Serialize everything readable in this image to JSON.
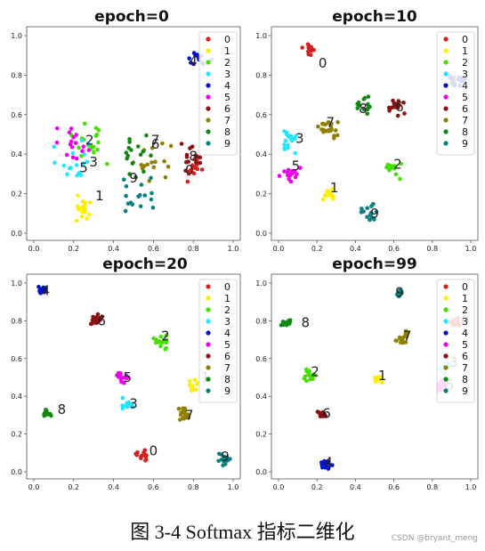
{
  "caption": "图 3-4 Softmax 指标二维化",
  "watermark": "CSDN @bryant_meng",
  "colors": [
    "#d62020",
    "#ffee00",
    "#44e000",
    "#22e6ff",
    "#0011cc",
    "#ee00ee",
    "#8b1010",
    "#8f8000",
    "#118811",
    "#0a8080"
  ],
  "chart_data": [
    {
      "type": "scatter",
      "title": "epoch=0",
      "xlim": [
        0,
        1
      ],
      "ylim": [
        0,
        1
      ],
      "xticks": [
        "0.0",
        "0.2",
        "0.4",
        "0.6",
        "0.8",
        "1.0"
      ],
      "yticks": [
        "0.0",
        "0.2",
        "0.4",
        "0.6",
        "0.8",
        "1.0"
      ],
      "legend": [
        "0",
        "1",
        "2",
        "3",
        "4",
        "5",
        "6",
        "7",
        "8",
        "9"
      ],
      "legend_position": "top-right",
      "clusters": [
        {
          "label": "0",
          "center": [
            0.8,
            0.32
          ],
          "spread": 0.06,
          "count": 16
        },
        {
          "label": "1",
          "center": [
            0.25,
            0.12
          ],
          "spread": 0.06,
          "count": 16
        },
        {
          "label": "2",
          "center": [
            0.28,
            0.45
          ],
          "spread": 0.09,
          "count": 18
        },
        {
          "label": "3",
          "center": [
            0.2,
            0.38
          ],
          "spread": 0.08,
          "count": 16
        },
        {
          "label": "4",
          "center": [
            0.82,
            0.88
          ],
          "spread": 0.05,
          "count": 12
        },
        {
          "label": "5",
          "center": [
            0.2,
            0.45
          ],
          "spread": 0.08,
          "count": 16
        },
        {
          "label": "6",
          "center": [
            0.8,
            0.35
          ],
          "spread": 0.08,
          "count": 14
        },
        {
          "label": "7",
          "center": [
            0.58,
            0.38
          ],
          "spread": 0.09,
          "count": 16
        },
        {
          "label": "8",
          "center": [
            0.52,
            0.42
          ],
          "spread": 0.09,
          "count": 16
        },
        {
          "label": "9",
          "center": [
            0.5,
            0.2
          ],
          "spread": 0.08,
          "count": 16
        }
      ],
      "annotations": [
        {
          "text": "0",
          "x": 0.78,
          "y": 0.32
        },
        {
          "text": "1",
          "x": 0.33,
          "y": 0.19
        },
        {
          "text": "2",
          "x": 0.28,
          "y": 0.47
        },
        {
          "text": "3",
          "x": 0.3,
          "y": 0.36
        },
        {
          "text": "4",
          "x": 0.8,
          "y": 0.87
        },
        {
          "text": "5",
          "x": 0.25,
          "y": 0.33
        },
        {
          "text": "6",
          "x": 0.61,
          "y": 0.45
        },
        {
          "text": "7",
          "x": 0.61,
          "y": 0.47
        },
        {
          "text": "8",
          "x": 0.8,
          "y": 0.39
        },
        {
          "text": "9",
          "x": 0.5,
          "y": 0.28
        }
      ]
    },
    {
      "type": "scatter",
      "title": "epoch=10",
      "xlim": [
        0,
        1
      ],
      "ylim": [
        0,
        1
      ],
      "xticks": [
        "0.0",
        "0.2",
        "0.4",
        "0.6",
        "0.8",
        "1.0"
      ],
      "yticks": [
        "0.0",
        "0.2",
        "0.4",
        "0.6",
        "0.8",
        "1.0"
      ],
      "legend": [
        "0",
        "1",
        "2",
        "3",
        "4",
        "5",
        "6",
        "7",
        "8",
        "9"
      ],
      "legend_position": "top-right",
      "clusters": [
        {
          "label": "0",
          "center": [
            0.16,
            0.93
          ],
          "spread": 0.03,
          "count": 16
        },
        {
          "label": "1",
          "center": [
            0.26,
            0.2
          ],
          "spread": 0.03,
          "count": 14
        },
        {
          "label": "2",
          "center": [
            0.6,
            0.33
          ],
          "spread": 0.04,
          "count": 14
        },
        {
          "label": "3",
          "center": [
            0.06,
            0.47
          ],
          "spread": 0.05,
          "count": 18
        },
        {
          "label": "4",
          "center": [
            0.92,
            0.77
          ],
          "spread": 0.04,
          "count": 16
        },
        {
          "label": "5",
          "center": [
            0.06,
            0.3
          ],
          "spread": 0.04,
          "count": 16
        },
        {
          "label": "6",
          "center": [
            0.62,
            0.64
          ],
          "spread": 0.04,
          "count": 16
        },
        {
          "label": "7",
          "center": [
            0.26,
            0.53
          ],
          "spread": 0.05,
          "count": 22
        },
        {
          "label": "8",
          "center": [
            0.45,
            0.65
          ],
          "spread": 0.04,
          "count": 14
        },
        {
          "label": "9",
          "center": [
            0.47,
            0.1
          ],
          "spread": 0.04,
          "count": 16
        }
      ],
      "annotations": [
        {
          "text": "0",
          "x": 0.23,
          "y": 0.86
        },
        {
          "text": "1",
          "x": 0.29,
          "y": 0.23
        },
        {
          "text": "2",
          "x": 0.62,
          "y": 0.35
        },
        {
          "text": "3",
          "x": 0.11,
          "y": 0.48
        },
        {
          "text": "4",
          "x": 0.91,
          "y": 0.77
        },
        {
          "text": "5",
          "x": 0.09,
          "y": 0.34
        },
        {
          "text": "6",
          "x": 0.63,
          "y": 0.64
        },
        {
          "text": "7",
          "x": 0.27,
          "y": 0.56
        },
        {
          "text": "8",
          "x": 0.44,
          "y": 0.63
        },
        {
          "text": "9",
          "x": 0.5,
          "y": 0.1
        }
      ]
    },
    {
      "type": "scatter",
      "title": "epoch=20",
      "xlim": [
        0,
        1
      ],
      "ylim": [
        0,
        1
      ],
      "xticks": [
        "0.0",
        "0.2",
        "0.4",
        "0.6",
        "0.8",
        "1.0"
      ],
      "yticks": [
        "0.0",
        "0.2",
        "0.4",
        "0.6",
        "0.8",
        "1.0"
      ],
      "legend": [
        "0",
        "1",
        "2",
        "3",
        "4",
        "5",
        "6",
        "7",
        "8",
        "9"
      ],
      "legend_position": "top-right",
      "clusters": [
        {
          "label": "0",
          "center": [
            0.55,
            0.08
          ],
          "spread": 0.03,
          "count": 14
        },
        {
          "label": "1",
          "center": [
            0.8,
            0.46
          ],
          "spread": 0.03,
          "count": 12
        },
        {
          "label": "2",
          "center": [
            0.64,
            0.69
          ],
          "spread": 0.03,
          "count": 16
        },
        {
          "label": "3",
          "center": [
            0.47,
            0.35
          ],
          "spread": 0.03,
          "count": 14
        },
        {
          "label": "4",
          "center": [
            0.04,
            0.96
          ],
          "spread": 0.02,
          "count": 14
        },
        {
          "label": "5",
          "center": [
            0.44,
            0.5
          ],
          "spread": 0.03,
          "count": 18
        },
        {
          "label": "6",
          "center": [
            0.31,
            0.8
          ],
          "spread": 0.03,
          "count": 16
        },
        {
          "label": "7",
          "center": [
            0.75,
            0.3
          ],
          "spread": 0.03,
          "count": 16
        },
        {
          "label": "8",
          "center": [
            0.06,
            0.31
          ],
          "spread": 0.02,
          "count": 14
        },
        {
          "label": "9",
          "center": [
            0.95,
            0.06
          ],
          "spread": 0.03,
          "count": 14
        }
      ],
      "annotations": [
        {
          "text": "0",
          "x": 0.6,
          "y": 0.11
        },
        {
          "text": "1",
          "x": 0.86,
          "y": 0.5
        },
        {
          "text": "2",
          "x": 0.66,
          "y": 0.72
        },
        {
          "text": "3",
          "x": 0.5,
          "y": 0.36
        },
        {
          "text": "4",
          "x": 0.06,
          "y": 0.96
        },
        {
          "text": "5",
          "x": 0.47,
          "y": 0.5
        },
        {
          "text": "6",
          "x": 0.34,
          "y": 0.8
        },
        {
          "text": "7",
          "x": 0.78,
          "y": 0.3
        },
        {
          "text": "8",
          "x": 0.14,
          "y": 0.33
        },
        {
          "text": "9",
          "x": 0.96,
          "y": 0.08
        }
      ]
    },
    {
      "type": "scatter",
      "title": "epoch=99",
      "xlim": [
        0,
        1
      ],
      "ylim": [
        0,
        1
      ],
      "xticks": [
        "0.0",
        "0.2",
        "0.4",
        "0.6",
        "0.8",
        "1.0"
      ],
      "yticks": [
        "0.0",
        "0.2",
        "0.4",
        "0.6",
        "0.8",
        "1.0"
      ],
      "legend": [
        "0",
        "1",
        "2",
        "3",
        "4",
        "5",
        "6",
        "7",
        "8",
        "9"
      ],
      "legend_position": "top-right",
      "clusters": [
        {
          "label": "0",
          "center": [
            0.92,
            0.8
          ],
          "spread": 0.03,
          "count": 12
        },
        {
          "label": "1",
          "center": [
            0.52,
            0.49
          ],
          "spread": 0.02,
          "count": 14
        },
        {
          "label": "2",
          "center": [
            0.16,
            0.51
          ],
          "spread": 0.03,
          "count": 16
        },
        {
          "label": "3",
          "center": [
            0.87,
            0.55
          ],
          "spread": 0.03,
          "count": 12
        },
        {
          "label": "4",
          "center": [
            0.25,
            0.04
          ],
          "spread": 0.03,
          "count": 16
        },
        {
          "label": "5",
          "center": [
            0.85,
            0.45
          ],
          "spread": 0.03,
          "count": 14
        },
        {
          "label": "6",
          "center": [
            0.23,
            0.3
          ],
          "spread": 0.02,
          "count": 14
        },
        {
          "label": "7",
          "center": [
            0.64,
            0.71
          ],
          "spread": 0.03,
          "count": 16
        },
        {
          "label": "8",
          "center": [
            0.04,
            0.79
          ],
          "spread": 0.02,
          "count": 14
        },
        {
          "label": "9",
          "center": [
            0.63,
            0.94
          ],
          "spread": 0.02,
          "count": 14
        }
      ],
      "annotations": [
        {
          "text": "0",
          "x": 0.97,
          "y": 0.8
        },
        {
          "text": "1",
          "x": 0.54,
          "y": 0.51
        },
        {
          "text": "2",
          "x": 0.19,
          "y": 0.53
        },
        {
          "text": "3",
          "x": 0.91,
          "y": 0.58
        },
        {
          "text": "4",
          "x": 0.26,
          "y": 0.05
        },
        {
          "text": "5",
          "x": 0.89,
          "y": 0.46
        },
        {
          "text": "6",
          "x": 0.25,
          "y": 0.31
        },
        {
          "text": "7",
          "x": 0.67,
          "y": 0.72
        },
        {
          "text": "8",
          "x": 0.14,
          "y": 0.79
        },
        {
          "text": "9",
          "x": 0.63,
          "y": 0.95
        }
      ]
    }
  ]
}
